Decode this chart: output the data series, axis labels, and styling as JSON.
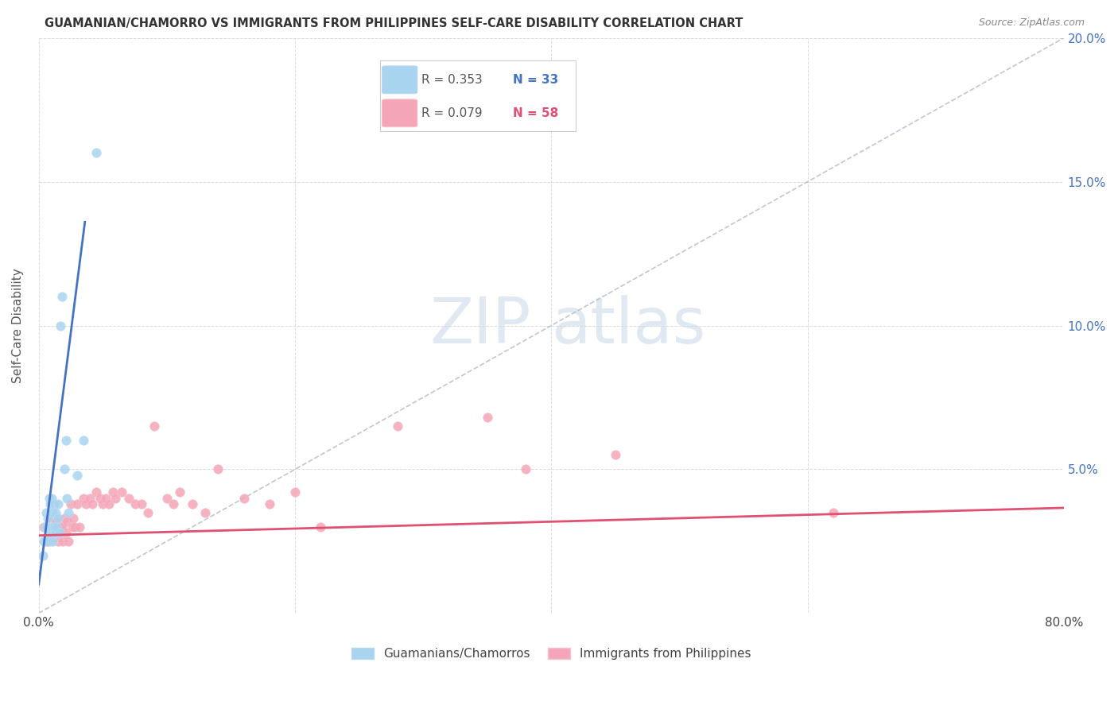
{
  "title": "GUAMANIAN/CHAMORRO VS IMMIGRANTS FROM PHILIPPINES SELF-CARE DISABILITY CORRELATION CHART",
  "source": "Source: ZipAtlas.com",
  "ylabel": "Self-Care Disability",
  "xlim": [
    0.0,
    0.8
  ],
  "ylim": [
    0.0,
    0.2
  ],
  "legend_r1": "R = 0.353",
  "legend_n1": "N = 33",
  "legend_r2": "R = 0.079",
  "legend_n2": "N = 58",
  "legend_label1": "Guamanians/Chamorros",
  "legend_label2": "Immigrants from Philippines",
  "color_blue": "#a8d4f0",
  "color_pink": "#f4a6b8",
  "color_blue_line": "#4472c4",
  "color_pink_line": "#e05070",
  "watermark_zip": "ZIP",
  "watermark_atlas": "atlas",
  "background_color": "#ffffff",
  "grid_color": "#d8d8d8",
  "blue_scatter_x": [
    0.003,
    0.004,
    0.005,
    0.006,
    0.006,
    0.007,
    0.007,
    0.008,
    0.008,
    0.009,
    0.009,
    0.01,
    0.01,
    0.01,
    0.011,
    0.011,
    0.012,
    0.012,
    0.013,
    0.013,
    0.014,
    0.015,
    0.015,
    0.016,
    0.017,
    0.018,
    0.02,
    0.021,
    0.022,
    0.023,
    0.03,
    0.035,
    0.045
  ],
  "blue_scatter_y": [
    0.02,
    0.025,
    0.03,
    0.03,
    0.035,
    0.025,
    0.033,
    0.028,
    0.04,
    0.03,
    0.038,
    0.03,
    0.035,
    0.04,
    0.025,
    0.035,
    0.03,
    0.038,
    0.028,
    0.035,
    0.03,
    0.033,
    0.038,
    0.028,
    0.1,
    0.11,
    0.05,
    0.06,
    0.04,
    0.035,
    0.048,
    0.06,
    0.16
  ],
  "pink_scatter_x": [
    0.004,
    0.005,
    0.006,
    0.007,
    0.008,
    0.009,
    0.01,
    0.011,
    0.012,
    0.013,
    0.014,
    0.015,
    0.016,
    0.017,
    0.018,
    0.019,
    0.02,
    0.021,
    0.022,
    0.023,
    0.025,
    0.026,
    0.027,
    0.028,
    0.03,
    0.032,
    0.035,
    0.037,
    0.04,
    0.042,
    0.045,
    0.048,
    0.05,
    0.052,
    0.055,
    0.058,
    0.06,
    0.065,
    0.07,
    0.075,
    0.08,
    0.085,
    0.09,
    0.1,
    0.105,
    0.11,
    0.12,
    0.13,
    0.14,
    0.16,
    0.18,
    0.2,
    0.22,
    0.28,
    0.35,
    0.38,
    0.45,
    0.62
  ],
  "pink_scatter_y": [
    0.03,
    0.03,
    0.025,
    0.03,
    0.025,
    0.032,
    0.03,
    0.028,
    0.033,
    0.03,
    0.032,
    0.025,
    0.028,
    0.03,
    0.03,
    0.025,
    0.033,
    0.028,
    0.032,
    0.025,
    0.038,
    0.03,
    0.033,
    0.03,
    0.038,
    0.03,
    0.04,
    0.038,
    0.04,
    0.038,
    0.042,
    0.04,
    0.038,
    0.04,
    0.038,
    0.042,
    0.04,
    0.042,
    0.04,
    0.038,
    0.038,
    0.035,
    0.065,
    0.04,
    0.038,
    0.042,
    0.038,
    0.035,
    0.05,
    0.04,
    0.038,
    0.042,
    0.03,
    0.065,
    0.068,
    0.05,
    0.055,
    0.035
  ],
  "blue_line_x": [
    0.0,
    0.035
  ],
  "blue_line_y_intercept": 0.01,
  "blue_line_slope": 3.5,
  "pink_line_x": [
    0.0,
    0.8
  ],
  "pink_line_y_intercept": 0.027,
  "pink_line_slope": 0.012
}
